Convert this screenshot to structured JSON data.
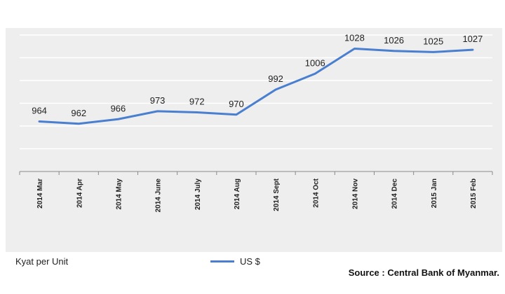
{
  "chart_data": {
    "type": "line",
    "categories": [
      "2014 Mar",
      "2014 Apr",
      "2014 May",
      "2014 June",
      "2014 July",
      "2014 Aug",
      "2014 Sept",
      "2014 Oct",
      "2014 Nov",
      "2014 Dec",
      "2015 Jan",
      "2015 Feb"
    ],
    "series": [
      {
        "name": "US $",
        "values": [
          964,
          962,
          966,
          973,
          972,
          970,
          992,
          1006,
          1028,
          1026,
          1025,
          1027
        ]
      }
    ],
    "ylabel": "Kyat per Unit",
    "ylim": [
      920,
      1040
    ],
    "grid": true,
    "legend": "bottom",
    "colors": {
      "series": "#4a7fd0",
      "background": "#eeeeef",
      "grid": "#ffffff"
    }
  },
  "source": "Source : Central Bank of Myanmar."
}
